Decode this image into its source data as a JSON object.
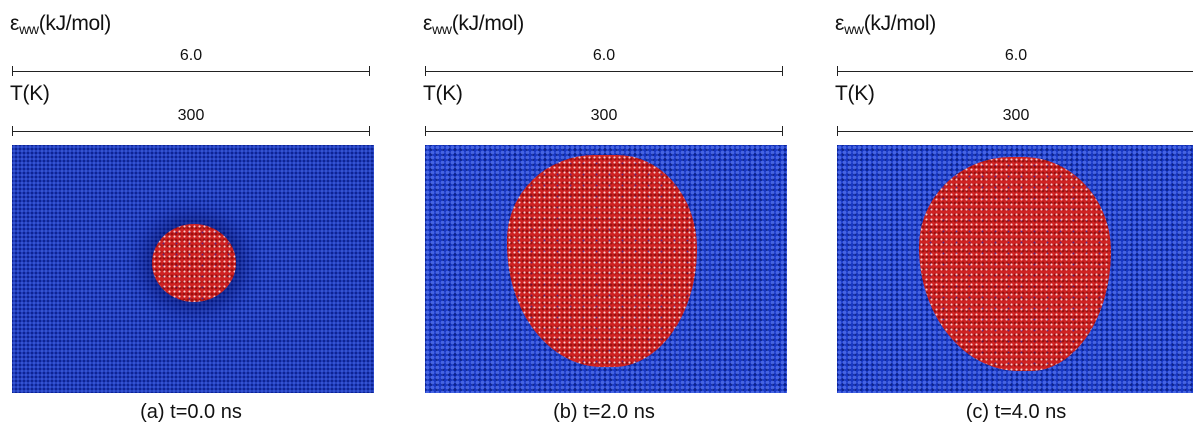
{
  "panels": [
    {
      "epsilon_label": "ε",
      "epsilon_sub": "ww",
      "epsilon_unit": "(kJ/mol)",
      "epsilon_value": "6.0",
      "temperature_label": "T(K)",
      "temperature_value": "300",
      "caption": "(a) t=0.0 ns",
      "time_ns": 0.0
    },
    {
      "epsilon_label": "ε",
      "epsilon_sub": "ww",
      "epsilon_unit": "(kJ/mol)",
      "epsilon_value": "6.0",
      "temperature_label": "T(K)",
      "temperature_value": "300",
      "caption": "(b) t=2.0 ns",
      "time_ns": 2.0
    },
    {
      "epsilon_label": "ε",
      "epsilon_sub": "ww",
      "epsilon_unit": "(kJ/mol)",
      "epsilon_value": "6.0",
      "temperature_label": "T(K)",
      "temperature_value": "300",
      "caption": "(c) t=4.0 ns",
      "time_ns": 4.0
    }
  ],
  "colors": {
    "substrate": "#1533b7",
    "droplet": "#cf2222",
    "highlight": "#ffffff"
  }
}
